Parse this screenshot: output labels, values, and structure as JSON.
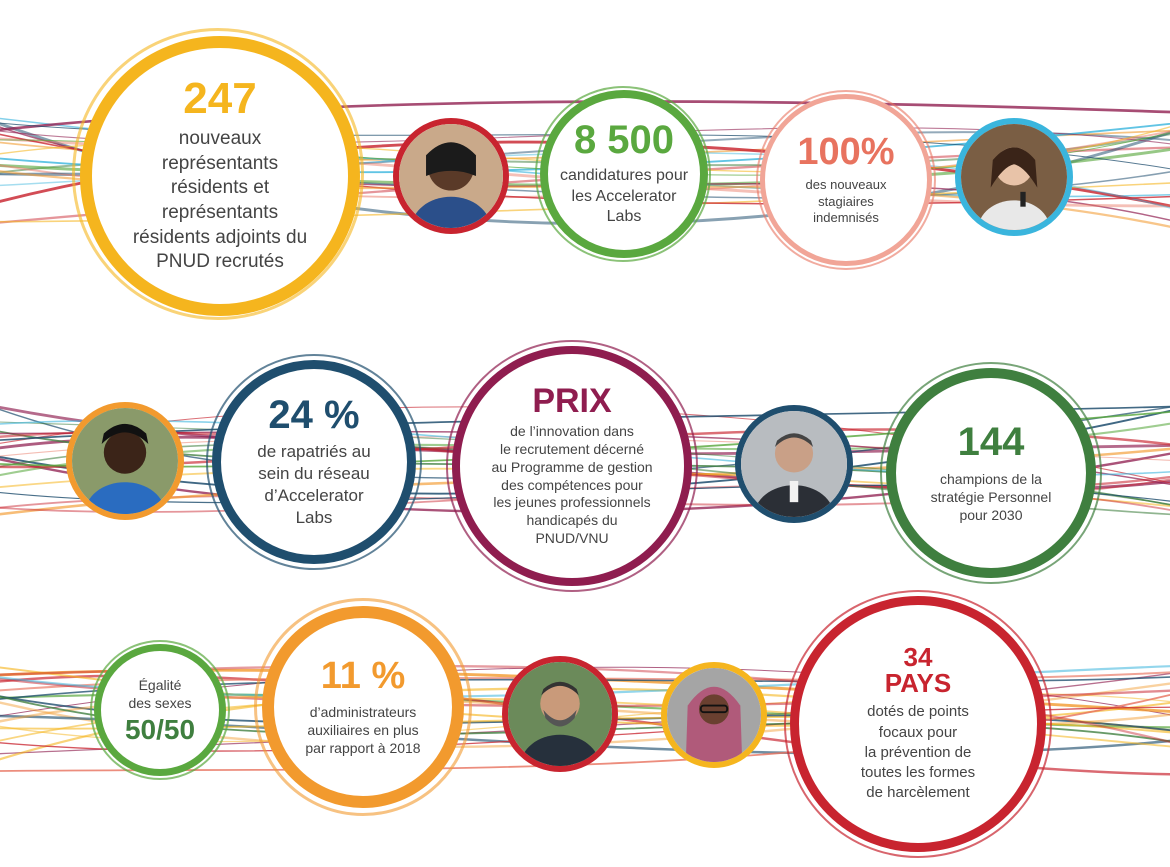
{
  "colors": {
    "yellow": "#f5b51e",
    "green": "#5aa83f",
    "salmon": "#e8735f",
    "navy": "#1f4e6e",
    "maroon": "#8f1d4f",
    "forest": "#3f7f3f",
    "orange": "#f29a2e",
    "red": "#c8242f",
    "cyan": "#3ab5dd",
    "text": "#444444"
  },
  "stats": [
    {
      "id": "recrutes",
      "value": "247",
      "text": [
        "nouveaux",
        "représentants",
        "résidents et",
        "représentants",
        "résidents adjoints du",
        "PNUD recrutés"
      ]
    },
    {
      "id": "candidatures",
      "value": "8 500",
      "text": [
        "candidatures pour",
        "les Accelerator",
        "Labs"
      ]
    },
    {
      "id": "stagiaires",
      "value": "100%",
      "text": [
        "des nouveaux",
        "stagiaires",
        "indemnisés"
      ]
    },
    {
      "id": "rapatries",
      "value": "24 %",
      "text": [
        "de rapatriés au",
        "sein du réseau",
        "d’Accelerator",
        "Labs"
      ]
    },
    {
      "id": "prix",
      "value": "PRIX",
      "text": [
        "de l’innovation dans",
        "le recrutement décerné",
        "au Programme de gestion",
        "des compétences pour",
        "les jeunes professionnels",
        "handicapés du",
        "PNUD/VNU"
      ]
    },
    {
      "id": "champions",
      "value": "144",
      "text": [
        "champions de la",
        "stratégie Personnel",
        "pour 2030"
      ]
    },
    {
      "id": "egalite",
      "label": [
        "Égalité",
        "des sexes"
      ],
      "value": "50/50"
    },
    {
      "id": "administrateurs",
      "value": "11 %",
      "text": [
        "d’administrateurs",
        "auxiliaires en plus",
        "par rapport à 2018"
      ]
    },
    {
      "id": "pays",
      "value": "34",
      "value2": "PAYS",
      "text": [
        "dotés de points",
        "focaux pour",
        "la prévention de",
        "toutes les formes",
        "de harcèlement"
      ]
    }
  ],
  "photos": [
    {
      "id": "woman-glasses-icon",
      "ring": "#c8242f"
    },
    {
      "id": "woman-microphone-icon",
      "ring": "#3ab5dd"
    },
    {
      "id": "woman-smiling-icon",
      "ring": "#f29a2e"
    },
    {
      "id": "man-suit-icon",
      "ring": "#1f4e6e"
    },
    {
      "id": "man-beard-icon",
      "ring": "#c8242f"
    },
    {
      "id": "woman-scarf-icon",
      "ring": "#f5b51e"
    }
  ]
}
